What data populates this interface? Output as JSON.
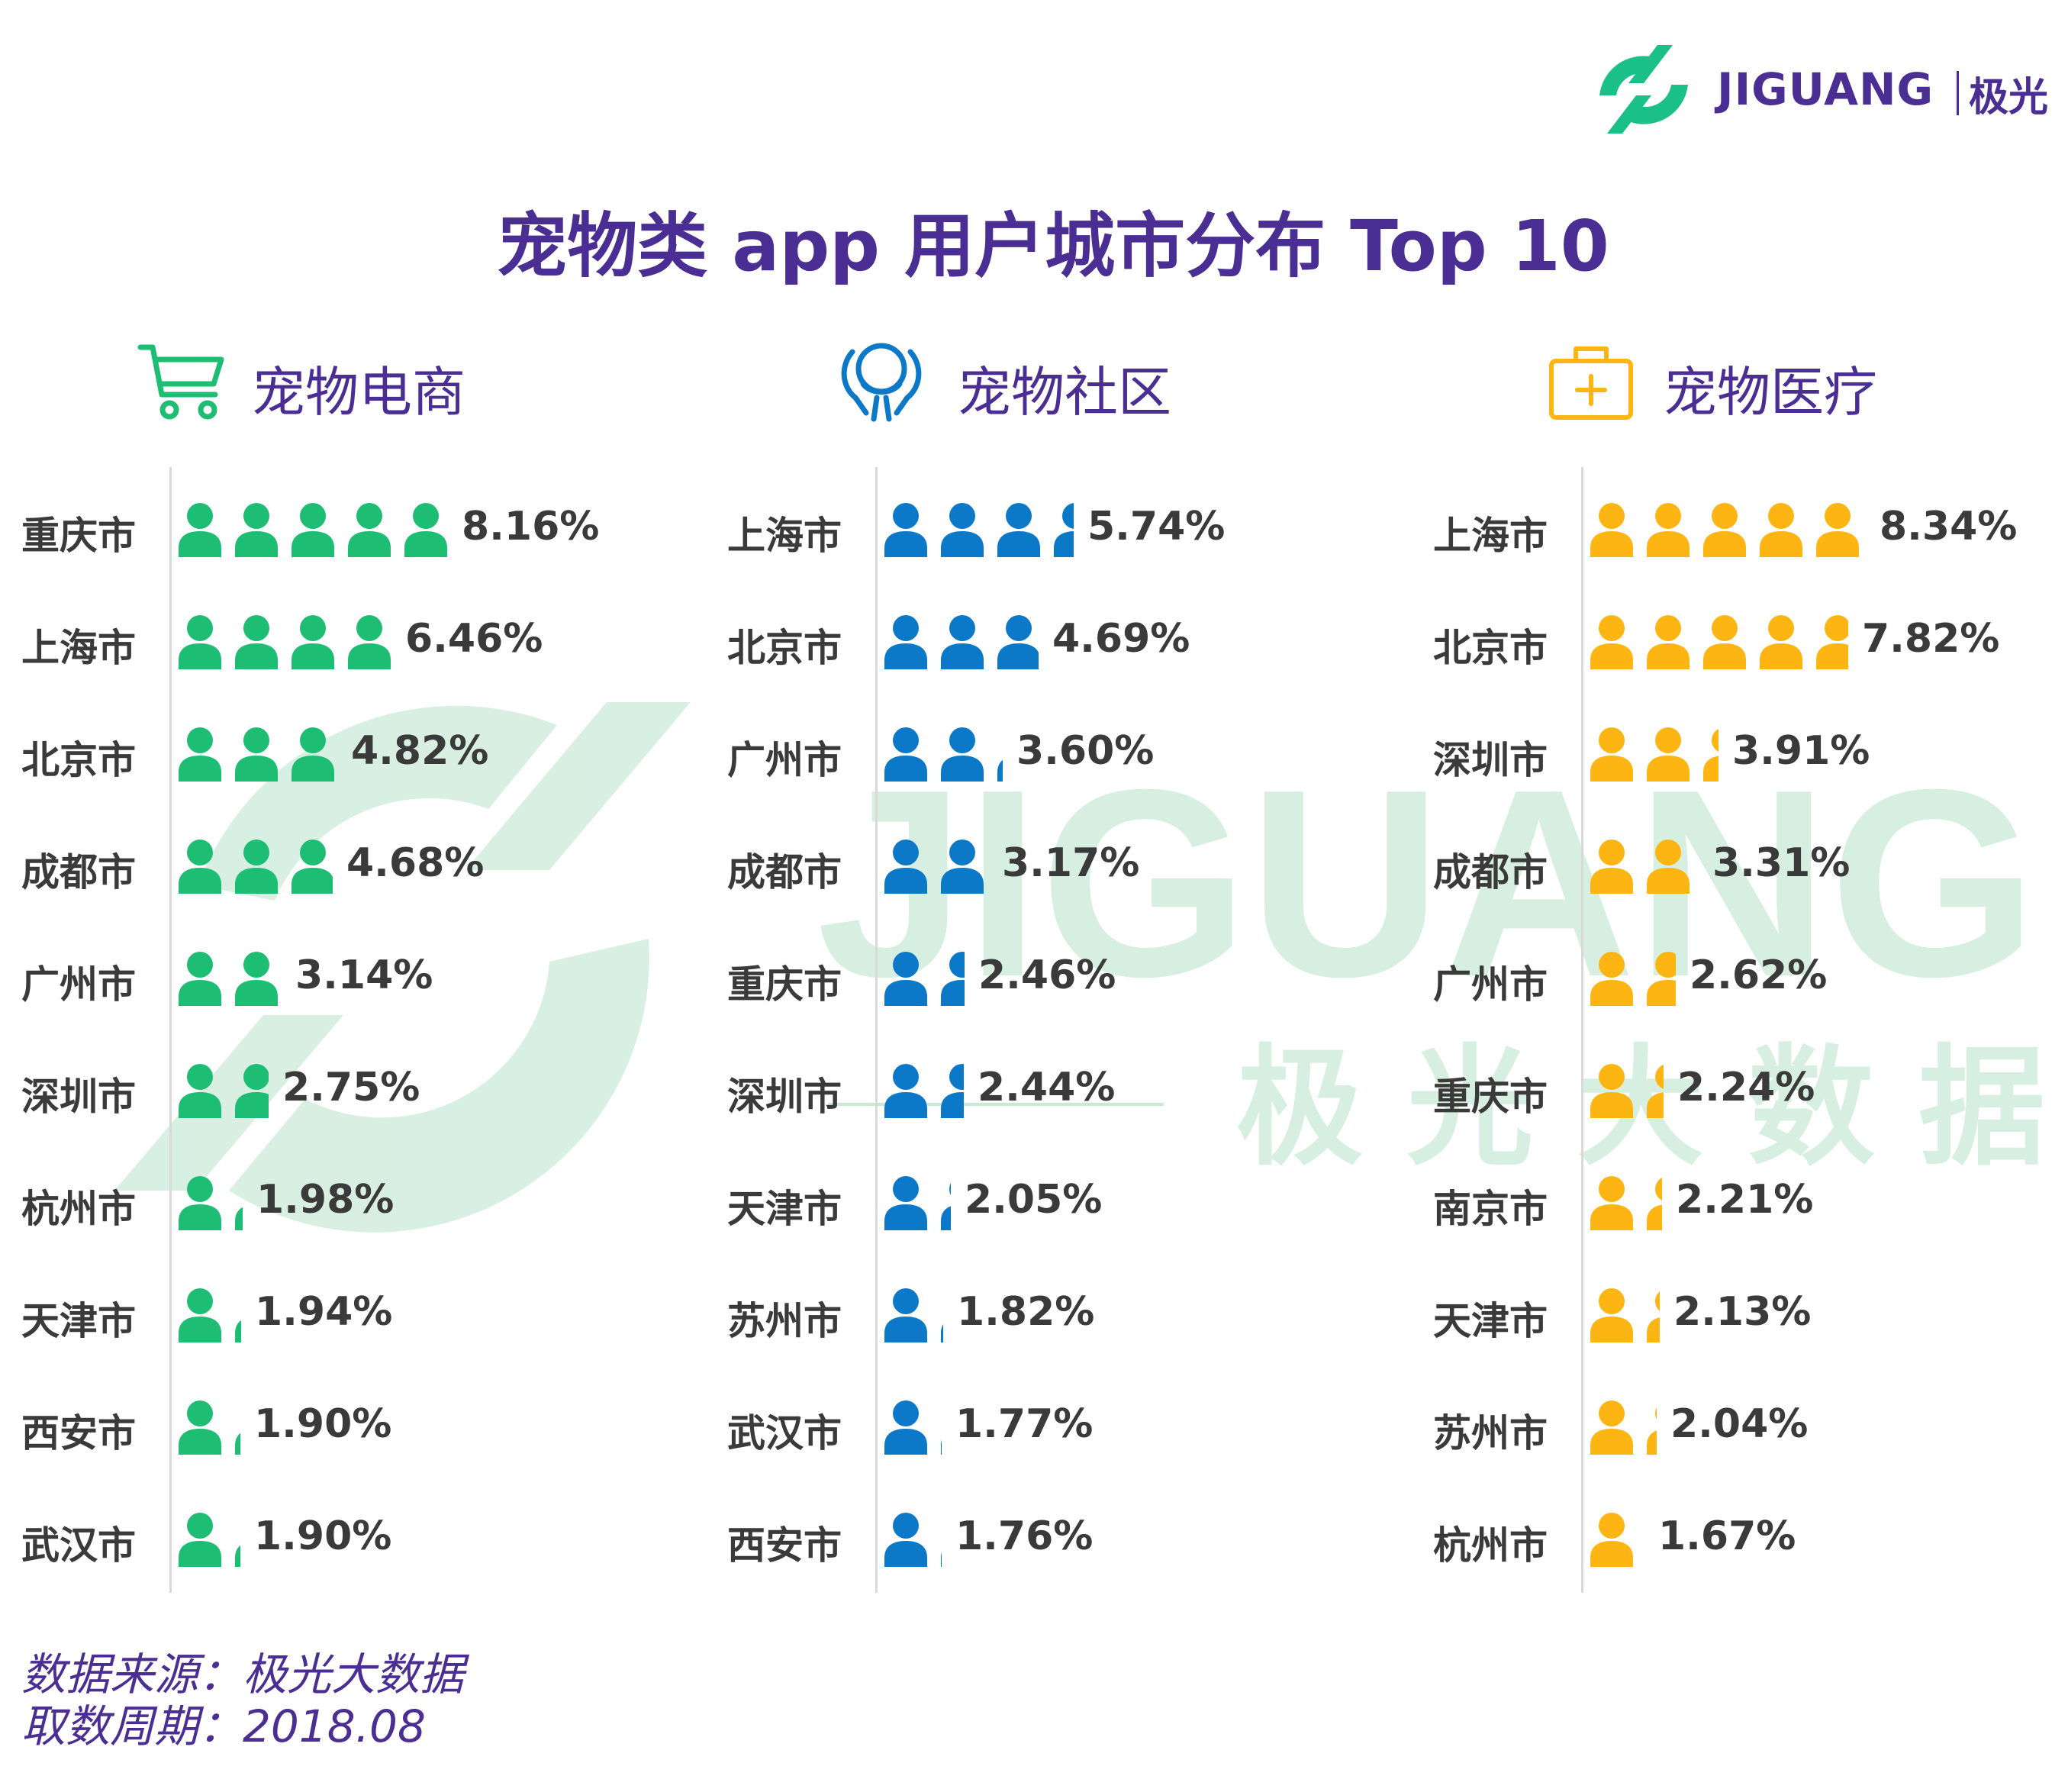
{
  "brand": {
    "name": "JIGUANG",
    "name_cn": "极光"
  },
  "watermark": {
    "text": "JIGUANG",
    "subtext": "极 光 大 数 据"
  },
  "title": "宠物类 app 用户城市分布 Top 10",
  "colors": {
    "brand_purple": "#4a2e93",
    "watermark_green": "#d6efe1",
    "logo_green": "#1bbf88"
  },
  "chart_data": [
    {
      "type": "bar",
      "category": "宠物电商",
      "icon": "shopping-cart-icon",
      "color": "#1dbd73",
      "unit": "%",
      "categories": [
        "重庆市",
        "上海市",
        "北京市",
        "成都市",
        "广州市",
        "深圳市",
        "杭州市",
        "天津市",
        "西安市",
        "武汉市"
      ],
      "values": [
        8.16,
        6.46,
        4.82,
        4.68,
        3.14,
        2.75,
        1.98,
        1.94,
        1.9,
        1.9
      ],
      "labels": [
        "8.16%",
        "6.46%",
        "4.82%",
        "4.68%",
        "3.14%",
        "2.75%",
        "1.98%",
        "1.94%",
        "1.90%",
        "1.90%"
      ]
    },
    {
      "type": "bar",
      "category": "宠物社区",
      "icon": "community-icon",
      "color": "#0b78c8",
      "unit": "%",
      "categories": [
        "上海市",
        "北京市",
        "广州市",
        "成都市",
        "重庆市",
        "深圳市",
        "天津市",
        "苏州市",
        "武汉市",
        "西安市"
      ],
      "values": [
        5.74,
        4.69,
        3.6,
        3.17,
        2.46,
        2.44,
        2.05,
        1.82,
        1.77,
        1.76
      ],
      "labels": [
        "5.74%",
        "4.69%",
        "3.60%",
        "3.17%",
        "2.46%",
        "2.44%",
        "2.05%",
        "1.82%",
        "1.77%",
        "1.76%"
      ]
    },
    {
      "type": "bar",
      "category": "宠物医疗",
      "icon": "medical-kit-icon",
      "color": "#fdb514",
      "unit": "%",
      "categories": [
        "上海市",
        "北京市",
        "深圳市",
        "成都市",
        "广州市",
        "重庆市",
        "南京市",
        "天津市",
        "苏州市",
        "杭州市"
      ],
      "values": [
        8.34,
        7.82,
        3.91,
        3.31,
        2.62,
        2.24,
        2.21,
        2.13,
        2.04,
        1.67
      ],
      "labels": [
        "8.34%",
        "7.82%",
        "3.91%",
        "3.31%",
        "2.62%",
        "2.24%",
        "2.21%",
        "2.13%",
        "2.04%",
        "1.67%"
      ]
    }
  ],
  "footer": {
    "source": "数据来源：极光大数据",
    "period": "取数周期：2018.08"
  }
}
